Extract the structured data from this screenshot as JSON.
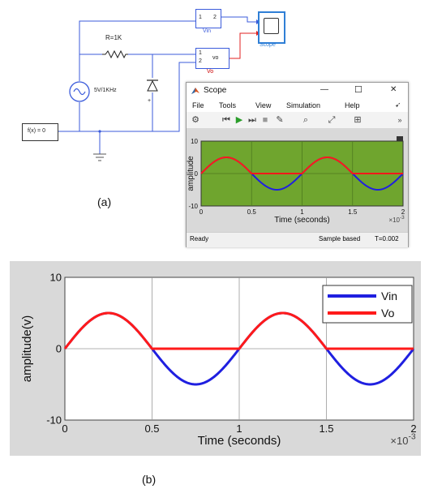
{
  "caption_a": "(a)",
  "caption_b": "(b)",
  "simulink": {
    "resistor_label": "R=1K",
    "source_label": "5V/1KHz",
    "constant_block": "f(x) = 0",
    "vin_block": {
      "port1": "1",
      "port2": "2",
      "label": "Vin"
    },
    "vo_block": {
      "port1": "1",
      "port2": "2",
      "text": "vo",
      "label": "Vo"
    },
    "scope_block_label": "Scope",
    "diode_plus": "+"
  },
  "scope_window": {
    "title": "Scope",
    "controls": {
      "minimize": "—",
      "maximize": "☐",
      "close": "✕"
    },
    "menu": [
      "File",
      "Tools",
      "View",
      "Simulation",
      "Help"
    ],
    "status_left": "Ready",
    "status_mode": "Sample based",
    "status_time": "T=0.002"
  },
  "colors": {
    "vin": "#1f1fe0",
    "vo": "#ff1a1a",
    "scope_bg": "#6fa52e",
    "wire": "#3b5bdb",
    "wire_red": "#e02020"
  },
  "chart_data": [
    {
      "type": "line",
      "id": "scope-plot",
      "ylabel": "amplitude",
      "xlabel": "Time (seconds)",
      "x_exponent": "×10",
      "x_exponent_power": "-3",
      "xlim": [
        0,
        2
      ],
      "ylim": [
        -10,
        10
      ],
      "xticks": [
        "0",
        "0.5",
        "1",
        "1.5",
        "2"
      ],
      "yticks": [
        "10",
        "0",
        "-10"
      ],
      "grid": true,
      "series": [
        {
          "key": "vin",
          "amplitude": 5,
          "frequency_khz": 1,
          "kind": "sine"
        },
        {
          "key": "vo",
          "amplitude": 5,
          "frequency_khz": 1,
          "kind": "half-wave-positive"
        }
      ]
    },
    {
      "type": "line",
      "id": "figure-b",
      "ylabel": "amplitude(v)",
      "xlabel": "Time (seconds)",
      "x_exponent": "×10",
      "x_exponent_power": "-3",
      "xlim": [
        0,
        2
      ],
      "ylim": [
        -10,
        10
      ],
      "xticks": [
        "0",
        "0.5",
        "1",
        "1.5",
        "2"
      ],
      "yticks": [
        "10",
        "0",
        "-10"
      ],
      "grid": true,
      "legend_position": "top-right",
      "series": [
        {
          "name": "Vin",
          "key": "vin",
          "amplitude": 5,
          "frequency_khz": 1,
          "kind": "sine"
        },
        {
          "name": "Vo",
          "key": "vo",
          "amplitude": 5,
          "frequency_khz": 1,
          "kind": "half-wave-positive"
        }
      ]
    }
  ]
}
